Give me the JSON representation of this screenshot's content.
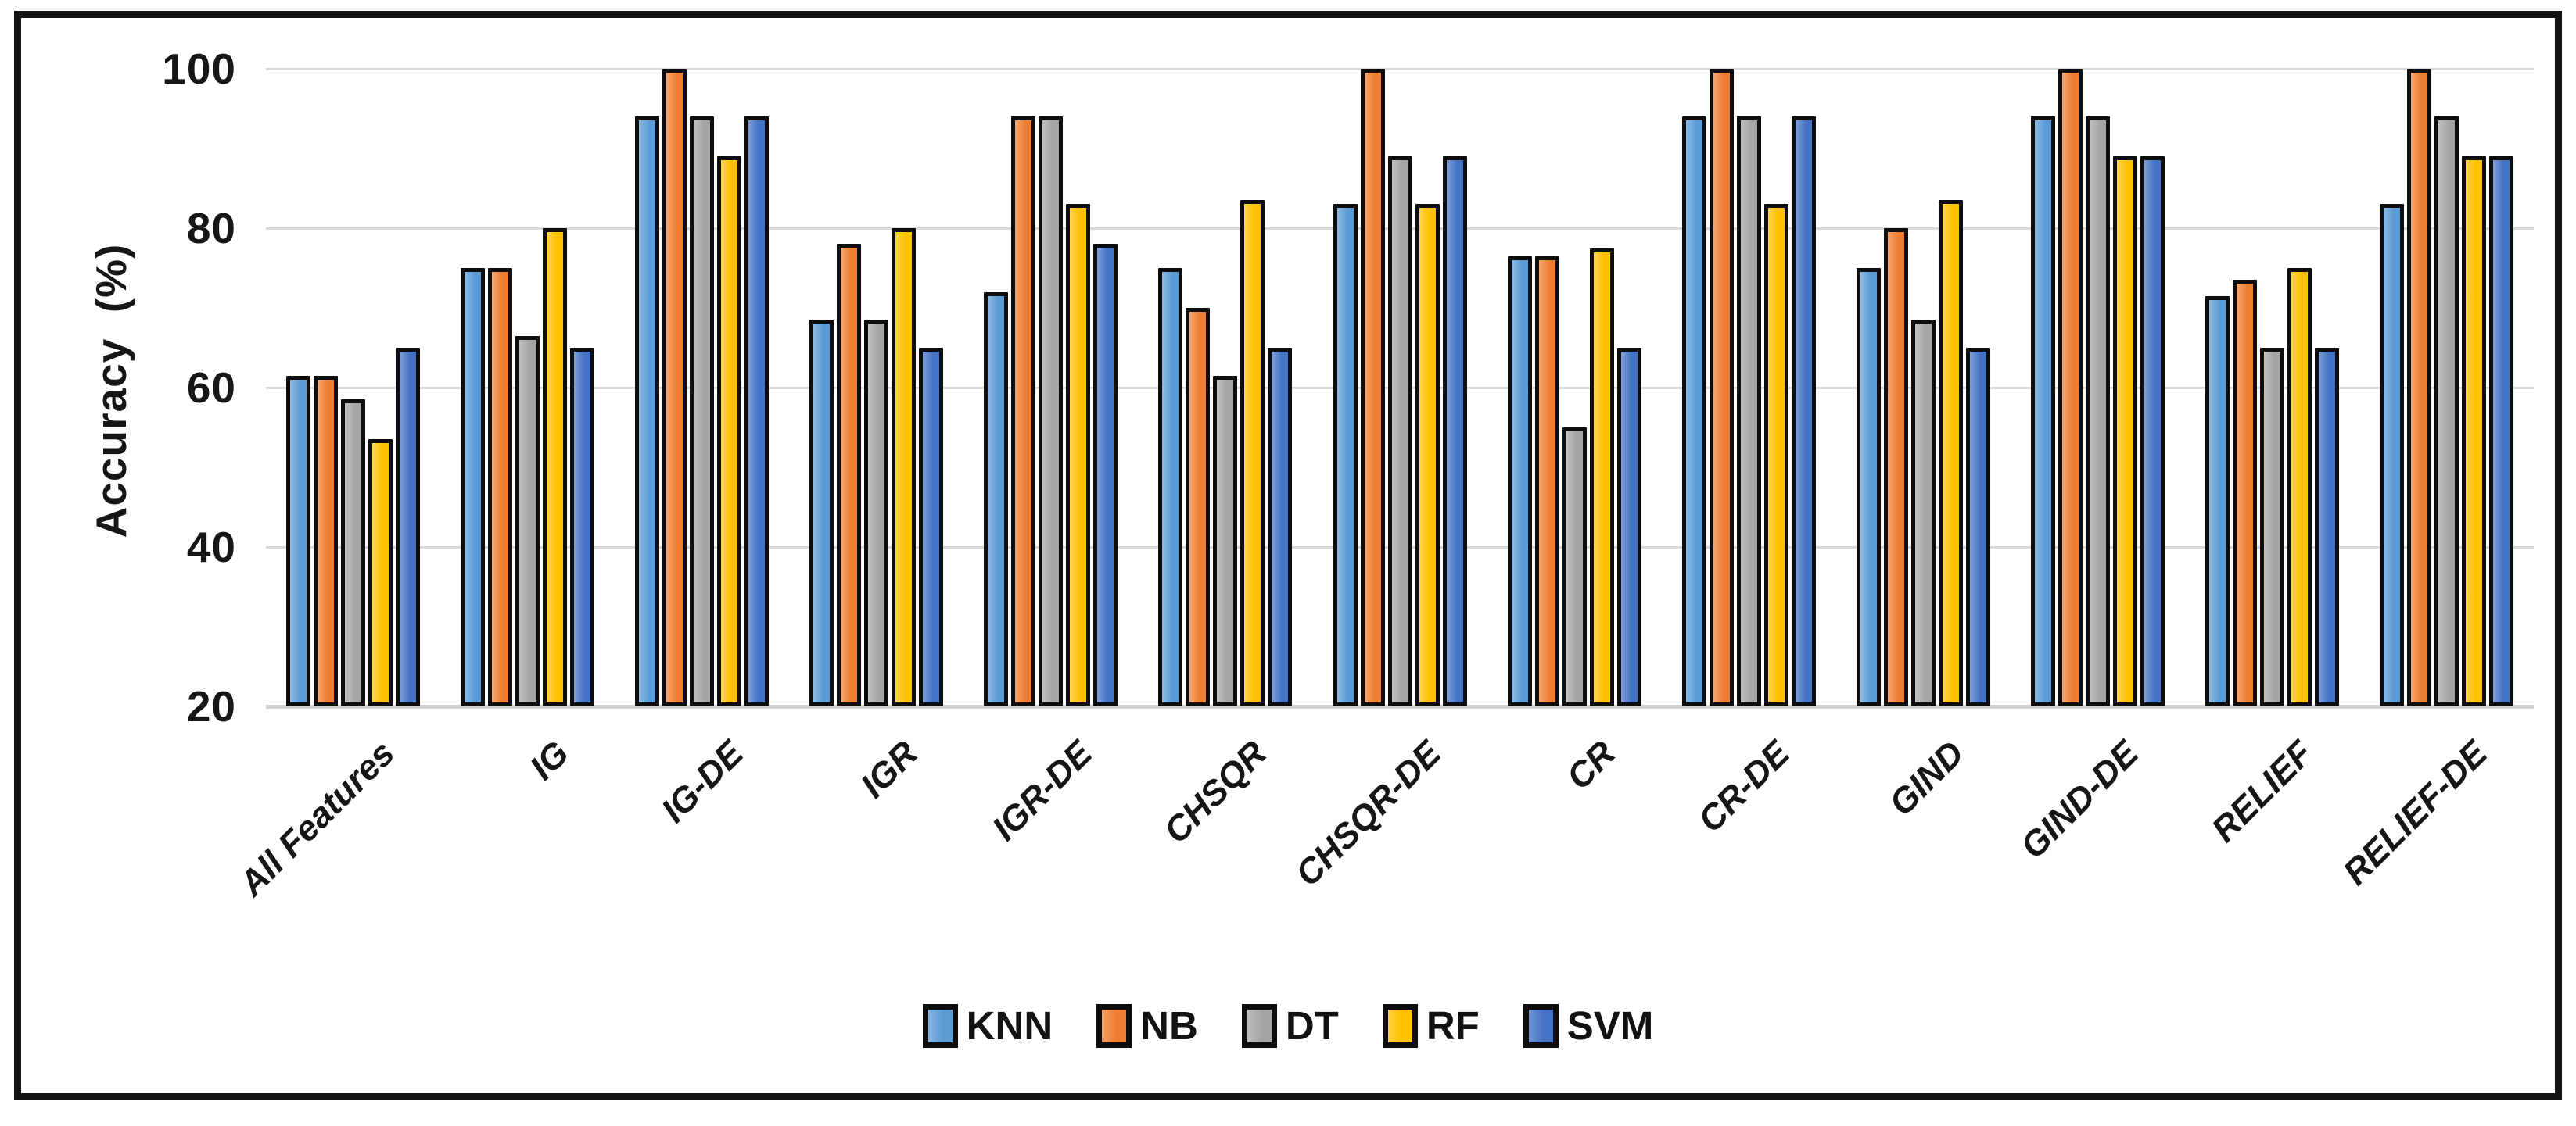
{
  "chart_data": {
    "type": "bar",
    "title": "",
    "xlabel": "",
    "ylabel": "Accuracy  (%)",
    "ylim": [
      20,
      100
    ],
    "yticks": [
      20,
      40,
      60,
      80,
      100
    ],
    "grid": "horizontal",
    "gridline_color": "#D9D9D9",
    "bar_outline_color": "#0D0D0D",
    "legend_position": "bottom-center",
    "x_label_rotation_deg": 45,
    "categories": [
      "All Features",
      "IG",
      "IG-DE",
      "IGR",
      "IGR-DE",
      "CHSQR",
      "CHSQR-DE",
      "CR",
      "CR-DE",
      "GIND",
      "GIND-DE",
      "RELIEF",
      "RELIEF-DE"
    ],
    "series": [
      {
        "name": "KNN",
        "color": "#5B9BD5",
        "values": [
          61.5,
          75,
          94,
          68.5,
          72,
          75,
          83,
          76.5,
          94,
          75,
          94,
          71.5,
          83
        ]
      },
      {
        "name": "NB",
        "color": "#ED7D31",
        "values": [
          61.5,
          75,
          100,
          78,
          94,
          70,
          100,
          76.5,
          100,
          80,
          100,
          73.5,
          100
        ]
      },
      {
        "name": "DT",
        "color": "#A5A5A5",
        "values": [
          58.5,
          66.5,
          94,
          68.5,
          94,
          61.5,
          89,
          55,
          94,
          68.5,
          94,
          65,
          94
        ]
      },
      {
        "name": "RF",
        "color": "#FFC000",
        "values": [
          53.5,
          80,
          89,
          80,
          83,
          83.5,
          83,
          77.5,
          83,
          83.5,
          89,
          75,
          89
        ]
      },
      {
        "name": "SVM",
        "color": "#4472C4",
        "values": [
          65,
          65,
          94,
          65,
          78,
          65,
          89,
          65,
          94,
          65,
          89,
          65,
          89
        ]
      }
    ]
  }
}
